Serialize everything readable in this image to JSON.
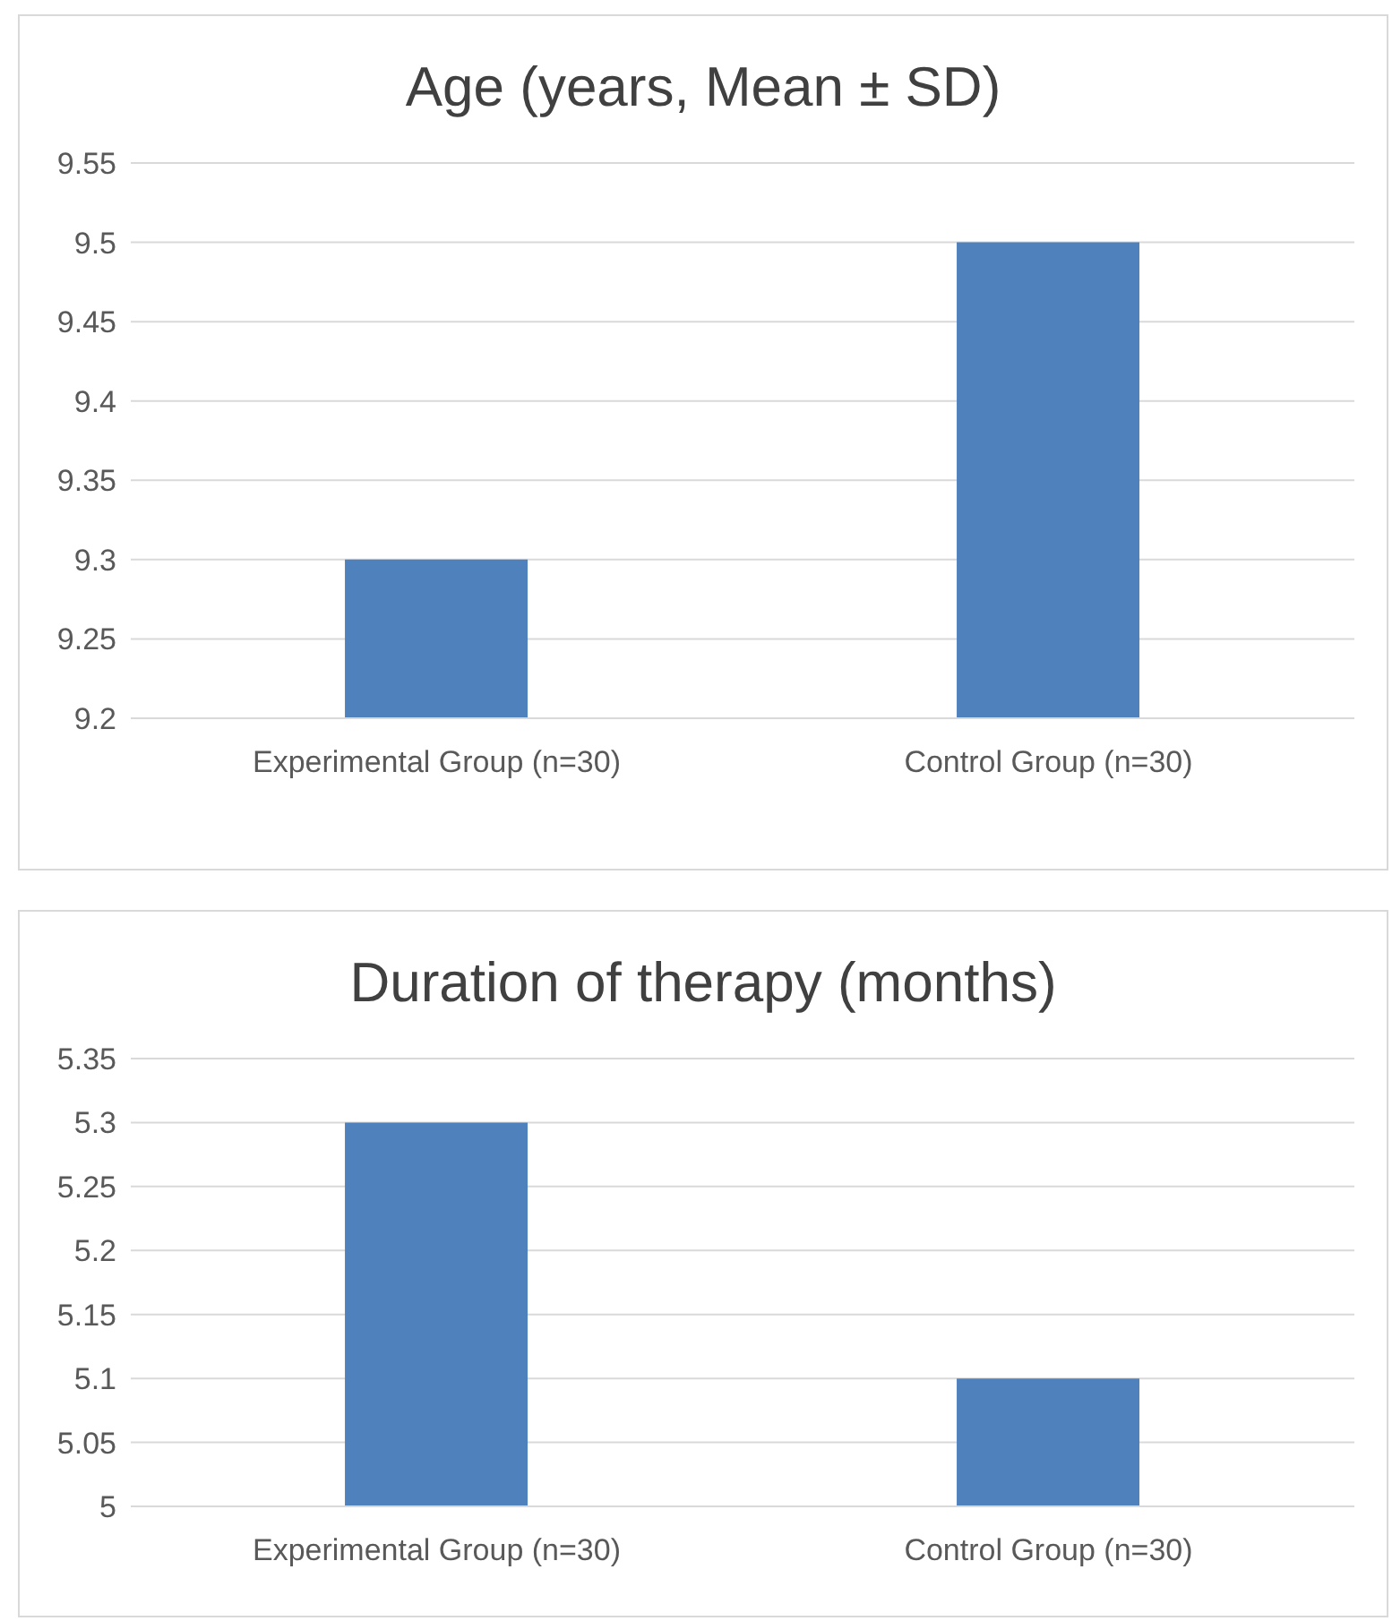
{
  "chart_data": [
    {
      "type": "bar",
      "title": "Age (years, Mean ± SD)",
      "categories": [
        "Experimental Group (n=30)",
        "Control Group (n=30)"
      ],
      "values": [
        9.3,
        9.5
      ],
      "color": "#4f81bd",
      "ylim": [
        9.2,
        9.55
      ],
      "yticks": [
        9.2,
        9.25,
        9.3,
        9.35,
        9.4,
        9.45,
        9.5,
        9.55
      ],
      "grid": "y"
    },
    {
      "type": "bar",
      "title": "Duration of therapy (months)",
      "categories": [
        "Experimental Group (n=30)",
        "Control Group (n=30)"
      ],
      "values": [
        5.3,
        5.1
      ],
      "color": "#4f81bd",
      "ylim": [
        5,
        5.35
      ],
      "yticks": [
        5,
        5.05,
        5.1,
        5.15,
        5.2,
        5.25,
        5.3,
        5.35
      ],
      "grid": "y"
    }
  ]
}
